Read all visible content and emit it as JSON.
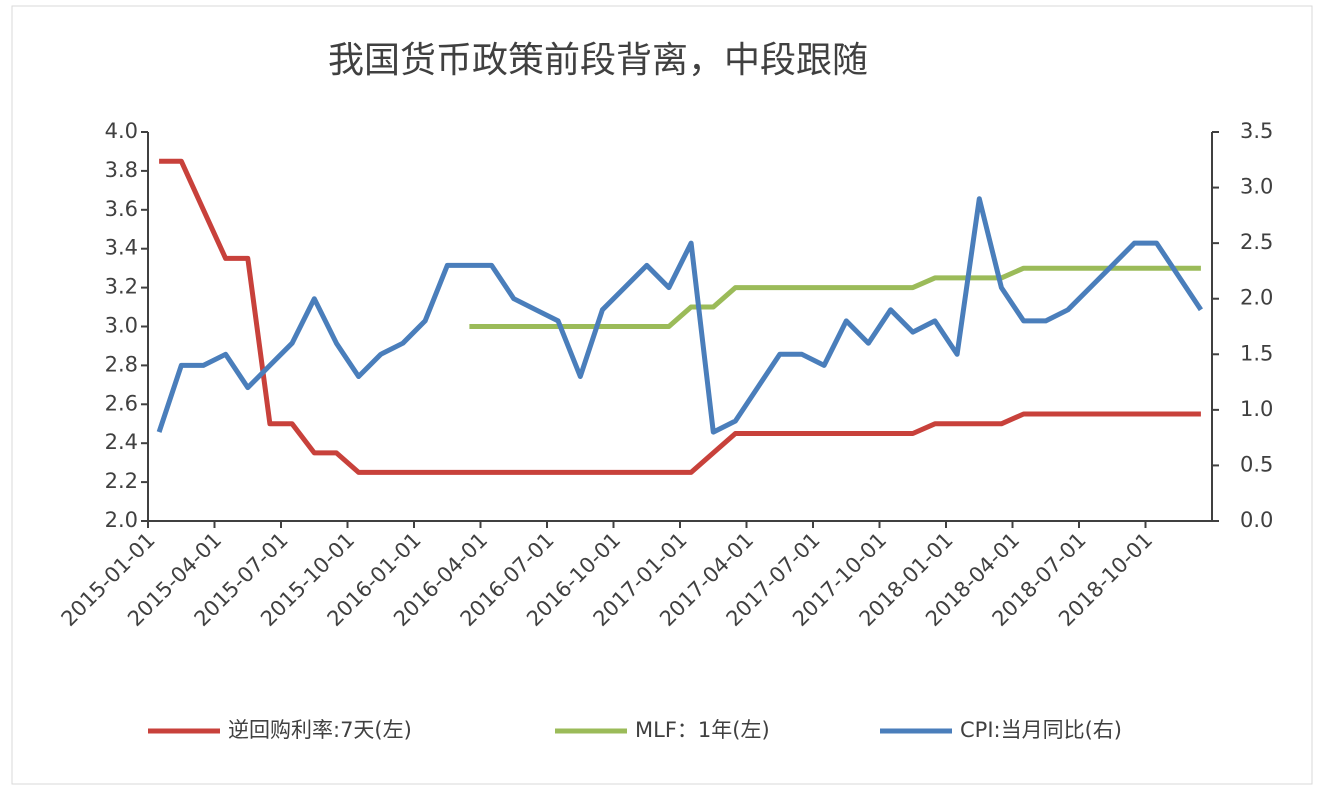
{
  "chart_data": {
    "type": "line",
    "title": "我国货币政策前段背离，中段跟随",
    "categories": [
      "2015-01-01",
      null,
      null,
      "2015-04-01",
      null,
      null,
      "2015-07-01",
      null,
      null,
      "2015-10-01",
      null,
      null,
      "2016-01-01",
      null,
      null,
      "2016-04-01",
      null,
      null,
      "2016-07-01",
      null,
      null,
      "2016-10-01",
      null,
      null,
      "2017-01-01",
      null,
      null,
      "2017-04-01",
      null,
      null,
      "2017-07-01",
      null,
      null,
      "2017-10-01",
      null,
      null,
      "2018-01-01",
      null,
      null,
      "2018-04-01",
      null,
      null,
      "2018-07-01",
      null,
      null,
      "2018-10-01",
      null,
      null
    ],
    "series": [
      {
        "name": "逆回购利率:7天(左)",
        "color": "#c8413b",
        "values": [
          3.85,
          3.85,
          3.6,
          3.35,
          3.35,
          2.5,
          2.5,
          2.35,
          2.35,
          2.25,
          2.25,
          2.25,
          2.25,
          2.25,
          2.25,
          2.25,
          2.25,
          2.25,
          2.25,
          2.25,
          2.25,
          2.25,
          2.25,
          2.25,
          2.25,
          2.35,
          2.45,
          2.45,
          2.45,
          2.45,
          2.45,
          2.45,
          2.45,
          2.45,
          2.45,
          2.5,
          2.5,
          2.5,
          2.5,
          2.55,
          2.55,
          2.55,
          2.55,
          2.55,
          2.55,
          2.55,
          2.55,
          2.55
        ]
      },
      {
        "name": "MLF：1年(左)",
        "color": "#9bbb59",
        "values": [
          null,
          null,
          null,
          null,
          null,
          null,
          null,
          null,
          null,
          null,
          null,
          null,
          null,
          null,
          3.0,
          3.0,
          3.0,
          3.0,
          3.0,
          3.0,
          3.0,
          3.0,
          3.0,
          3.0,
          3.1,
          3.1,
          3.2,
          3.2,
          3.2,
          3.2,
          3.2,
          3.2,
          3.2,
          3.2,
          3.2,
          3.25,
          3.25,
          3.25,
          3.25,
          3.3,
          3.3,
          3.3,
          3.3,
          3.3,
          3.3,
          3.3,
          3.3,
          3.3
        ]
      },
      {
        "name": "CPI:当月同比(右)",
        "color": "#4a7ebb",
        "axis": "y2",
        "values": [
          0.8,
          1.4,
          1.4,
          1.5,
          1.2,
          1.4,
          1.6,
          2.0,
          1.6,
          1.3,
          1.5,
          1.6,
          1.8,
          2.3,
          2.3,
          2.3,
          2.0,
          1.9,
          1.8,
          1.3,
          1.9,
          2.1,
          2.3,
          2.1,
          2.5,
          0.8,
          0.9,
          1.2,
          1.5,
          1.5,
          1.4,
          1.8,
          1.6,
          1.9,
          1.7,
          1.8,
          1.5,
          2.9,
          2.1,
          1.8,
          1.8,
          1.9,
          2.1,
          2.3,
          2.5,
          2.5,
          2.2,
          1.9
        ]
      }
    ],
    "ylim": [
      2.0,
      4.0
    ],
    "yticks": [
      {
        "value": 2.0,
        "label": "2.0"
      },
      2.2,
      2.4,
      2.6,
      2.8,
      {
        "value": 3.0,
        "label": "3.0"
      },
      3.2,
      3.4,
      3.6,
      3.8,
      {
        "value": 4.0,
        "label": "4.0"
      }
    ],
    "y2lim": [
      0,
      3.5
    ],
    "y2ticks": [
      {
        "value": 0,
        "label": "0.0"
      },
      0.5,
      {
        "value": 1,
        "label": "1.0"
      },
      1.5,
      {
        "value": 2,
        "label": "2.0"
      },
      2.5,
      {
        "value": 3,
        "label": "3.0"
      },
      3.5
    ]
  }
}
